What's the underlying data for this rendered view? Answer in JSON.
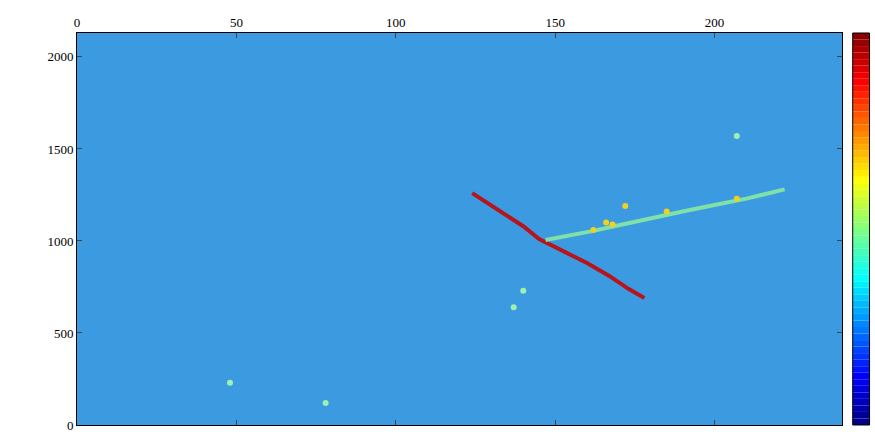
{
  "chart_data": {
    "type": "scatter",
    "xlim": [
      0,
      240
    ],
    "xticks": [
      0,
      50,
      100,
      150,
      200
    ],
    "ylim": [
      0,
      2130
    ],
    "yticks": [
      0,
      500,
      1000,
      1500,
      2000
    ],
    "grid": false,
    "series": [
      {
        "type": "line",
        "color": "#b8141c",
        "line_style": "solid",
        "x": [
          124,
          132,
          140,
          145,
          152,
          160,
          167,
          173,
          178
        ],
        "values": [
          1260,
          1170,
          1080,
          1010,
          950,
          880,
          810,
          740,
          690
        ]
      },
      {
        "type": "line",
        "color": "#7fe0a8",
        "line_style": "solid",
        "x": [
          147,
          155,
          162,
          170,
          180,
          190,
          200,
          210,
          222
        ],
        "values": [
          1005,
          1030,
          1055,
          1085,
          1125,
          1160,
          1195,
          1230,
          1280
        ]
      },
      {
        "type": "scatter",
        "color": "#f0d020",
        "marker": "circle",
        "x": [
          162,
          166,
          168,
          172,
          185,
          207
        ],
        "values": [
          1060,
          1100,
          1090,
          1190,
          1160,
          1230
        ]
      },
      {
        "type": "scatter",
        "color": "#9ef0b0",
        "marker": "circle",
        "x": [
          48,
          78,
          137,
          140,
          207
        ],
        "values": [
          230,
          120,
          640,
          730,
          1570
        ]
      }
    ]
  }
}
